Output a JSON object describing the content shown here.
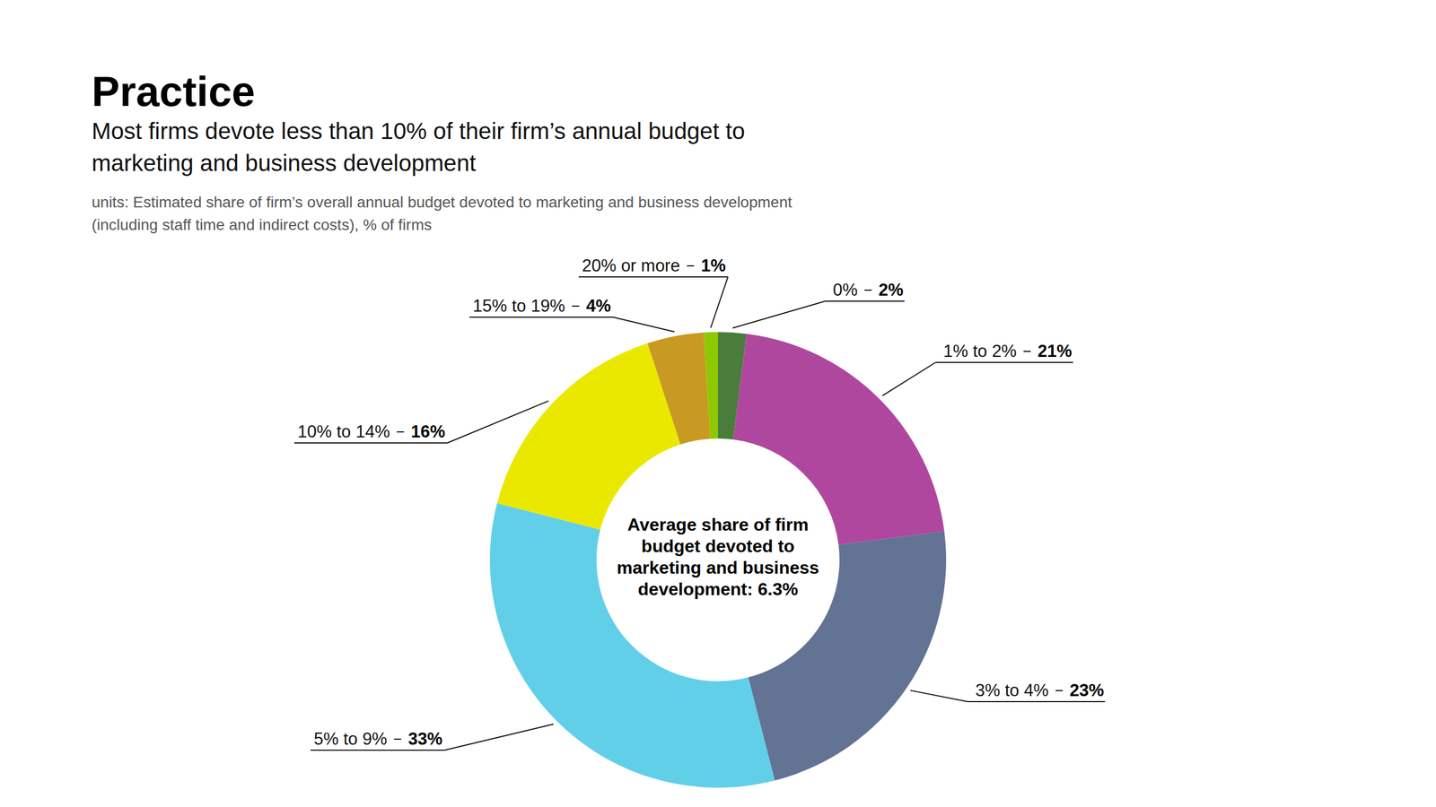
{
  "chart_data": {
    "type": "donut",
    "title": "Practice",
    "subtitle": [
      "Most firms devote less than 10% of their firm’s annual budget to",
      "marketing and business development"
    ],
    "note": [
      "units: Estimated share of firm’s overall annual budget devoted to marketing and business development",
      "(including staff time and indirect costs), % of firms"
    ],
    "annotation": [
      "Average share of firm",
      "budget devoted to",
      "marketing and business",
      "development: 6.3%"
    ],
    "categories": [
      "0%",
      "1% to 2%",
      "3% to 4%",
      "5% to 9%",
      "10% to 14%",
      "15% to 19%",
      "20% or more"
    ],
    "values": [
      2,
      21,
      23,
      33,
      16,
      4,
      1
    ],
    "value_labels": [
      "2%",
      "21%",
      "23%",
      "33%",
      "16%",
      "4%",
      "1%"
    ],
    "colors": [
      "#4a7d3b",
      "#b0479e",
      "#637394",
      "#62cfe8",
      "#ebe800",
      "#c89a21",
      "#8dc800"
    ],
    "data_labels": true
  }
}
